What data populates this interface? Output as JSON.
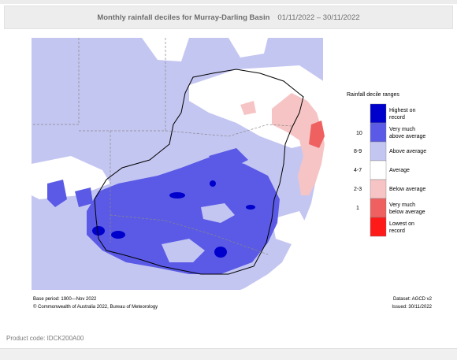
{
  "header": {
    "title": "Monthly rainfall deciles for Murray-Darling Basin",
    "date_range": "01/11/2022 – 30/11/2022"
  },
  "legend": {
    "title": "Rainfall decile ranges",
    "items": [
      {
        "range": "",
        "label_lines": [
          "Highest on",
          "record"
        ],
        "color": "#0000cc"
      },
      {
        "range": "10",
        "label_lines": [
          "Very much",
          "above average"
        ],
        "color": "#5a5ae6"
      },
      {
        "range": "8-9",
        "label_lines": [
          "Above average"
        ],
        "color": "#c4c6f2"
      },
      {
        "range": "4-7",
        "label_lines": [
          "Average"
        ],
        "color": "#ffffff"
      },
      {
        "range": "2-3",
        "label_lines": [
          "Below average"
        ],
        "color": "#f6c4c4"
      },
      {
        "range": "1",
        "label_lines": [
          "Very much",
          "below average"
        ],
        "color": "#ef6060"
      },
      {
        "range": "",
        "label_lines": [
          "Lowest on",
          "record"
        ],
        "color": "#ff1a1a"
      }
    ]
  },
  "map_footer": {
    "base_period": "Base period: 1900—Nov 2022",
    "dataset": "Dataset: AGCD v2",
    "copyright": "© Commonwealth of Australia 2022, Bureau of Meteorology",
    "issued": "Issued: 30/11/2022"
  },
  "product_code": "Product code: IDCK200A00",
  "colors": {
    "ocean": "#ffffff",
    "outside_basin_above": "#c4c6f2",
    "very_much_above": "#5a5ae6",
    "highest": "#0000cc",
    "below": "#f6c4c4",
    "very_much_below": "#ef6060"
  }
}
